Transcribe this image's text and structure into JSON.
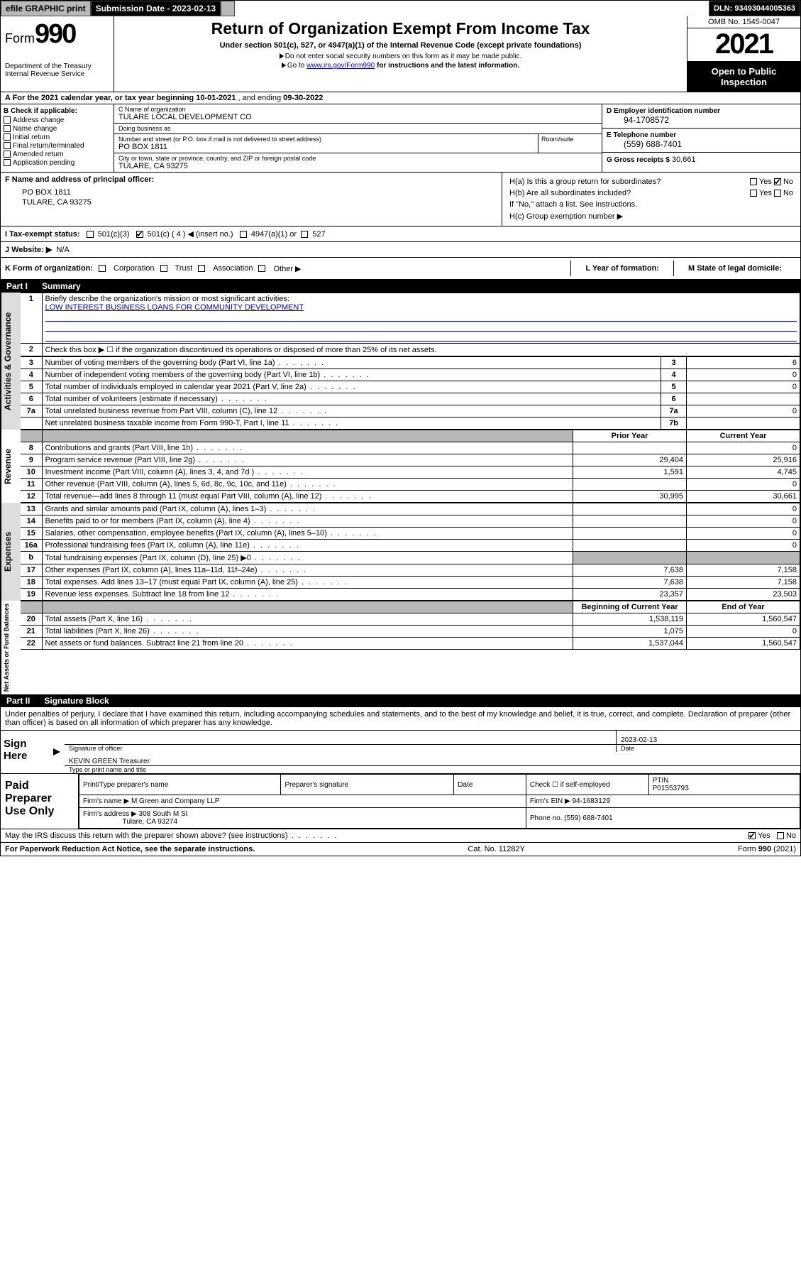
{
  "topbar": {
    "efile": "efile GRAPHIC print",
    "submission_label": "Submission Date - 2023-02-13",
    "dln": "DLN: 93493044005363"
  },
  "header": {
    "form_prefix": "Form",
    "form_num": "990",
    "dept": "Department of the Treasury",
    "irs": "Internal Revenue Service",
    "title": "Return of Organization Exempt From Income Tax",
    "sub": "Under section 501(c), 527, or 4947(a)(1) of the Internal Revenue Code (except private foundations)",
    "note1": "Do not enter social security numbers on this form as it may be made public.",
    "note2_pre": "Go to ",
    "note2_link": "www.irs.gov/Form990",
    "note2_post": " for instructions and the latest information.",
    "omb": "OMB No. 1545-0047",
    "year": "2021",
    "inspection": "Open to Public Inspection"
  },
  "rowA": {
    "pre": "A For the 2021 calendar year, or tax year beginning ",
    "begin": "10-01-2021",
    "mid": " , and ending ",
    "end": "09-30-2022"
  },
  "B": {
    "label": "B Check if applicable:",
    "opts": [
      "Address change",
      "Name change",
      "Initial return",
      "Final return/terminated",
      "Amended return",
      "Application pending"
    ]
  },
  "C": {
    "name_label": "C Name of organization",
    "name": "TULARE LOCAL DEVELOPMENT CO",
    "dba_label": "Doing business as",
    "dba": "",
    "street_label": "Number and street (or P.O. box if mail is not delivered to street address)",
    "street": "PO BOX 1811",
    "room_label": "Room/suite",
    "city_label": "City or town, state or province, country, and ZIP or foreign postal code",
    "city": "TULARE, CA  93275"
  },
  "D": {
    "label": "D Employer identification number",
    "val": "94-1708572"
  },
  "E": {
    "label": "E Telephone number",
    "val": "(559) 688-7401"
  },
  "G": {
    "label": "G Gross receipts $",
    "val": "30,661"
  },
  "F": {
    "label": "F Name and address of principal officer:",
    "line1": "PO BOX 1811",
    "line2": "TULARE, CA  93275"
  },
  "H": {
    "a": "H(a)  Is this a group return for subordinates?",
    "b": "H(b)  Are all subordinates included?",
    "b_note": "If \"No,\" attach a list. See instructions.",
    "c": "H(c)  Group exemption number ▶",
    "yes": "Yes",
    "no": "No"
  },
  "I": {
    "label": "I  Tax-exempt status:",
    "o1": "501(c)(3)",
    "o2": "501(c) ( 4 ) ◀ (insert no.)",
    "o3": "4947(a)(1) or",
    "o4": "527"
  },
  "J": {
    "label": "J  Website: ▶",
    "val": "N/A"
  },
  "K": {
    "label": "K Form of organization:",
    "opts": [
      "Corporation",
      "Trust",
      "Association",
      "Other ▶"
    ],
    "L": "L Year of formation:",
    "M": "M State of legal domicile:"
  },
  "part1": {
    "num": "Part I",
    "title": "Summary"
  },
  "summary": {
    "l1": "Briefly describe the organization's mission or most significant activities:",
    "mission": "LOW INTEREST BUSINESS LOANS FOR COMMUNITY DEVELOPMENT",
    "l2": "Check this box ▶ ☐  if the organization discontinued its operations or disposed of more than 25% of its net assets.",
    "rows_gov": [
      {
        "n": "3",
        "t": "Number of voting members of the governing body (Part VI, line 1a)",
        "k": "3",
        "v": "6"
      },
      {
        "n": "4",
        "t": "Number of independent voting members of the governing body (Part VI, line 1b)",
        "k": "4",
        "v": "0"
      },
      {
        "n": "5",
        "t": "Total number of individuals employed in calendar year 2021 (Part V, line 2a)",
        "k": "5",
        "v": "0"
      },
      {
        "n": "6",
        "t": "Total number of volunteers (estimate if necessary)",
        "k": "6",
        "v": ""
      },
      {
        "n": "7a",
        "t": "Total unrelated business revenue from Part VIII, column (C), line 12",
        "k": "7a",
        "v": "0"
      },
      {
        "n": "",
        "t": "Net unrelated business taxable income from Form 990-T, Part I, line 11",
        "k": "7b",
        "v": ""
      }
    ],
    "col_prior": "Prior Year",
    "col_current": "Current Year",
    "rows_rev": [
      {
        "n": "8",
        "t": "Contributions and grants (Part VIII, line 1h)",
        "p": "",
        "c": "0"
      },
      {
        "n": "9",
        "t": "Program service revenue (Part VIII, line 2g)",
        "p": "29,404",
        "c": "25,916"
      },
      {
        "n": "10",
        "t": "Investment income (Part VIII, column (A), lines 3, 4, and 7d )",
        "p": "1,591",
        "c": "4,745"
      },
      {
        "n": "11",
        "t": "Other revenue (Part VIII, column (A), lines 5, 6d, 8c, 9c, 10c, and 11e)",
        "p": "",
        "c": "0"
      },
      {
        "n": "12",
        "t": "Total revenue—add lines 8 through 11 (must equal Part VIII, column (A), line 12)",
        "p": "30,995",
        "c": "30,661"
      }
    ],
    "rows_exp": [
      {
        "n": "13",
        "t": "Grants and similar amounts paid (Part IX, column (A), lines 1–3)",
        "p": "",
        "c": "0"
      },
      {
        "n": "14",
        "t": "Benefits paid to or for members (Part IX, column (A), line 4)",
        "p": "",
        "c": "0"
      },
      {
        "n": "15",
        "t": "Salaries, other compensation, employee benefits (Part IX, column (A), lines 5–10)",
        "p": "",
        "c": "0"
      },
      {
        "n": "16a",
        "t": "Professional fundraising fees (Part IX, column (A), line 11e)",
        "p": "",
        "c": "0"
      },
      {
        "n": "b",
        "t": "Total fundraising expenses (Part IX, column (D), line 25) ▶0",
        "p": "SHADE",
        "c": "SHADE"
      },
      {
        "n": "17",
        "t": "Other expenses (Part IX, column (A), lines 11a–11d, 11f–24e)",
        "p": "7,638",
        "c": "7,158"
      },
      {
        "n": "18",
        "t": "Total expenses. Add lines 13–17 (must equal Part IX, column (A), line 25)",
        "p": "7,638",
        "c": "7,158"
      },
      {
        "n": "19",
        "t": "Revenue less expenses. Subtract line 18 from line 12",
        "p": "23,357",
        "c": "23,503"
      }
    ],
    "col_begin": "Beginning of Current Year",
    "col_end": "End of Year",
    "rows_net": [
      {
        "n": "20",
        "t": "Total assets (Part X, line 16)",
        "p": "1,538,119",
        "c": "1,560,547"
      },
      {
        "n": "21",
        "t": "Total liabilities (Part X, line 26)",
        "p": "1,075",
        "c": "0"
      },
      {
        "n": "22",
        "t": "Net assets or fund balances. Subtract line 21 from line 20",
        "p": "1,537,044",
        "c": "1,560,547"
      }
    ]
  },
  "vlabels": {
    "gov": "Activities & Governance",
    "rev": "Revenue",
    "exp": "Expenses",
    "net": "Net Assets or Fund Balances"
  },
  "part2": {
    "num": "Part II",
    "title": "Signature Block"
  },
  "sig": {
    "penalty": "Under penalties of perjury, I declare that I have examined this return, including accompanying schedules and statements, and to the best of my knowledge and belief, it is true, correct, and complete. Declaration of preparer (other than officer) is based on all information of which preparer has any knowledge.",
    "sign_here": "Sign Here",
    "sig_officer": "Signature of officer",
    "date": "Date",
    "date_val": "2023-02-13",
    "name_title": "KEVIN GREEN Treasurer",
    "name_lbl": "Type or print name and title"
  },
  "prep": {
    "label": "Paid Preparer Use Only",
    "h1": "Print/Type preparer's name",
    "h2": "Preparer's signature",
    "h3": "Date",
    "check": "Check ☐ if self-employed",
    "ptin_lbl": "PTIN",
    "ptin": "P01553793",
    "firm_name_lbl": "Firm's name   ▶",
    "firm_name": "M Green and Company LLP",
    "firm_ein_lbl": "Firm's EIN ▶",
    "firm_ein": "94-1683129",
    "firm_addr_lbl": "Firm's address ▶",
    "firm_addr1": "308 South M St",
    "firm_addr2": "Tulare, CA  93274",
    "phone_lbl": "Phone no.",
    "phone": "(559) 688-7401",
    "may": "May the IRS discuss this return with the preparer shown above? (see instructions)",
    "yes": "Yes",
    "no": "No"
  },
  "footer": {
    "left": "For Paperwork Reduction Act Notice, see the separate instructions.",
    "mid": "Cat. No. 11282Y",
    "right": "Form 990 (2021)"
  }
}
